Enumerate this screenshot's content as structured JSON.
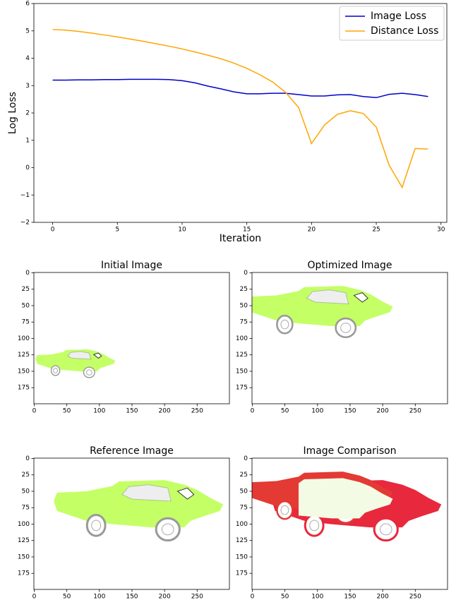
{
  "chart_data": [
    {
      "type": "line",
      "xlabel": "Iteration",
      "ylabel": "Log Loss",
      "x": [
        0,
        1,
        2,
        3,
        4,
        5,
        6,
        7,
        8,
        9,
        10,
        11,
        12,
        13,
        14,
        15,
        16,
        17,
        18,
        19,
        20,
        21,
        22,
        23,
        24,
        25,
        26,
        27,
        28,
        29
      ],
      "series": [
        {
          "name": "Image Loss",
          "color": "#0000cd",
          "values": [
            3.2,
            3.2,
            3.21,
            3.21,
            3.22,
            3.22,
            3.23,
            3.23,
            3.23,
            3.22,
            3.18,
            3.1,
            2.98,
            2.88,
            2.77,
            2.7,
            2.7,
            2.72,
            2.72,
            2.67,
            2.62,
            2.62,
            2.66,
            2.67,
            2.6,
            2.56,
            2.68,
            2.72,
            2.67,
            2.6
          ]
        },
        {
          "name": "Distance Loss",
          "color": "#ffa500",
          "values": [
            5.05,
            5.03,
            4.98,
            4.92,
            4.85,
            4.78,
            4.7,
            4.62,
            4.53,
            4.44,
            4.34,
            4.23,
            4.11,
            3.98,
            3.82,
            3.63,
            3.4,
            3.13,
            2.75,
            2.2,
            0.88,
            1.56,
            1.95,
            2.08,
            1.98,
            1.48,
            0.08,
            -0.72,
            0.7,
            0.68
          ]
        }
      ],
      "xlim": [
        -1.45,
        30.45
      ],
      "ylim": [
        -2,
        6
      ],
      "xticks": [
        0,
        5,
        10,
        15,
        20,
        25,
        30
      ],
      "yticks": [
        {
          "value": -2,
          "label": "−2"
        },
        {
          "value": -1,
          "label": "−1"
        },
        0,
        1,
        2,
        3,
        4,
        5,
        6
      ],
      "legend": "upper right"
    },
    {
      "type": "image",
      "title": "Initial Image",
      "xlim": [
        -0.5,
        299.5
      ],
      "ylim": [
        199.5,
        -0.5
      ],
      "xticks": [
        0,
        50,
        100,
        150,
        200,
        250
      ],
      "yticks": [
        0,
        25,
        50,
        75,
        100,
        125,
        150,
        175
      ]
    },
    {
      "type": "image",
      "title": "Optimized Image",
      "xlim": [
        -0.5,
        299.5
      ],
      "ylim": [
        199.5,
        -0.5
      ],
      "xticks": [
        0,
        50,
        100,
        150,
        200,
        250
      ],
      "yticks": [
        0,
        25,
        50,
        75,
        100,
        125,
        150,
        175
      ]
    },
    {
      "type": "image",
      "title": "Reference Image",
      "xlim": [
        -0.5,
        299.5
      ],
      "ylim": [
        199.5,
        -0.5
      ],
      "xticks": [
        0,
        50,
        100,
        150,
        200,
        250
      ],
      "yticks": [
        0,
        25,
        50,
        75,
        100,
        125,
        150,
        175
      ]
    },
    {
      "type": "image",
      "title": "Image Comparison",
      "xlim": [
        -0.5,
        299.5
      ],
      "ylim": [
        199.5,
        -0.5
      ],
      "xticks": [
        0,
        50,
        100,
        150,
        200,
        250
      ],
      "yticks": [
        0,
        25,
        50,
        75,
        100,
        125,
        150,
        175
      ]
    }
  ]
}
